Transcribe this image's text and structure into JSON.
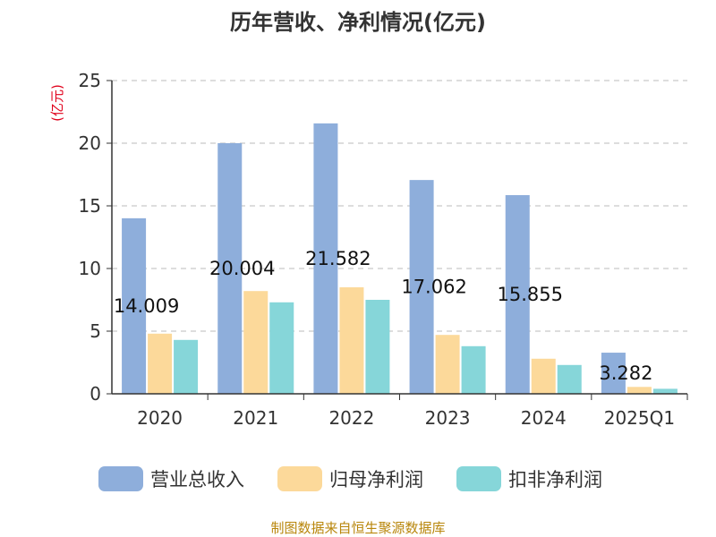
{
  "chart_data": {
    "type": "bar",
    "title": "历年营收、净利情况(亿元)",
    "ylabel": "(亿元)",
    "xlabel": "",
    "ylim": [
      0,
      25
    ],
    "yticks": [
      0,
      5,
      10,
      15,
      20,
      25
    ],
    "grid": true,
    "legend_position": "bottom",
    "categories": [
      "2020",
      "2021",
      "2022",
      "2023",
      "2024",
      "2025Q1"
    ],
    "series": [
      {
        "name": "营业总收入",
        "color": "#8eaedb",
        "values": [
          14.009,
          20.004,
          21.582,
          17.062,
          15.855,
          3.282
        ],
        "labels": [
          "14.009",
          "20.004",
          "21.582",
          "17.062",
          "15.855",
          "3.282"
        ]
      },
      {
        "name": "归母净利润",
        "color": "#fcd99a",
        "values": [
          4.8,
          8.2,
          8.5,
          4.7,
          2.8,
          0.55
        ]
      },
      {
        "name": "扣非净利润",
        "color": "#86d6d9",
        "values": [
          4.3,
          7.3,
          7.5,
          3.8,
          2.3,
          0.4
        ]
      }
    ],
    "source": "制图数据来自恒生聚源数据库"
  }
}
